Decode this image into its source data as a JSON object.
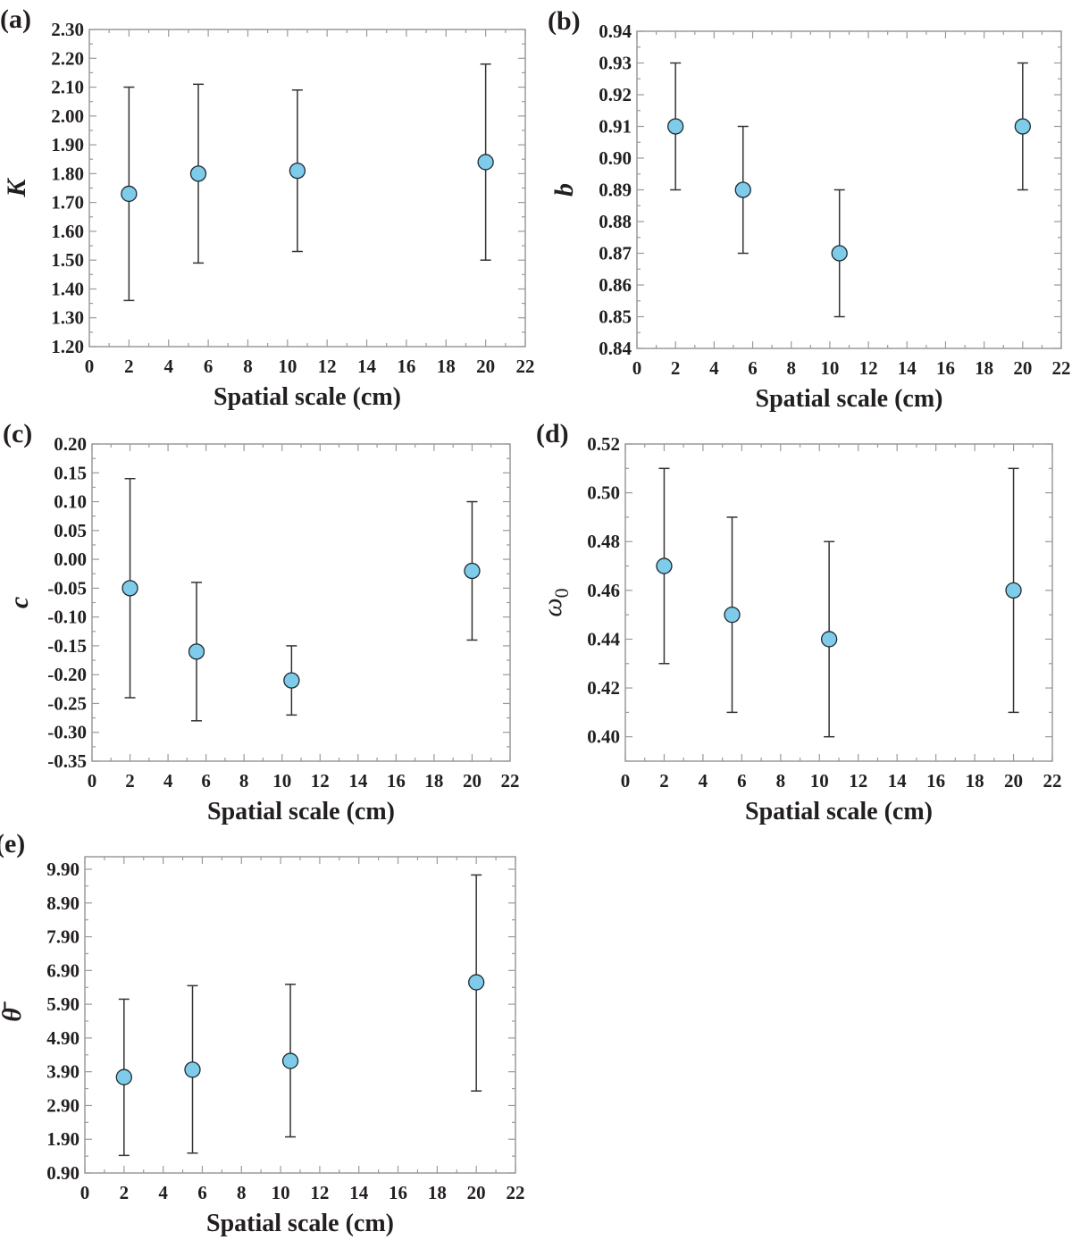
{
  "colors": {
    "marker_fill": "#7ecbea",
    "marker_edge": "#1f2a33",
    "errorbar": "#333333",
    "frame": "#9a9a9a"
  },
  "chart_data": [
    {
      "panel": "(a)",
      "type": "scatter",
      "xlabel": "Spatial scale (cm)",
      "ylabel": "K",
      "xlim": [
        0,
        22
      ],
      "ylim": [
        1.2,
        2.3
      ],
      "xticks": [
        "0",
        "2",
        "4",
        "6",
        "8",
        "10",
        "12",
        "14",
        "16",
        "18",
        "20",
        "22"
      ],
      "yticks": [
        "1.20",
        "1.30",
        "1.40",
        "1.50",
        "1.60",
        "1.70",
        "1.80",
        "1.90",
        "2.00",
        "2.10",
        "2.20",
        "2.30"
      ],
      "x": [
        2,
        5.5,
        10.5,
        20
      ],
      "y": [
        1.73,
        1.8,
        1.81,
        1.84
      ],
      "err_low": [
        1.36,
        1.49,
        1.53,
        1.5
      ],
      "err_high": [
        2.1,
        2.11,
        2.09,
        2.18
      ]
    },
    {
      "panel": "(b)",
      "type": "scatter",
      "xlabel": "Spatial scale (cm)",
      "ylabel": "b",
      "xlim": [
        0,
        22
      ],
      "ylim": [
        0.84,
        0.94
      ],
      "xticks": [
        "0",
        "2",
        "4",
        "6",
        "8",
        "10",
        "12",
        "14",
        "16",
        "18",
        "20",
        "22"
      ],
      "yticks": [
        "0.84",
        "0.85",
        "0.86",
        "0.87",
        "0.88",
        "0.89",
        "0.90",
        "0.91",
        "0.92",
        "0.93",
        "0.94"
      ],
      "x": [
        2,
        5.5,
        10.5,
        20
      ],
      "y": [
        0.91,
        0.89,
        0.87,
        0.91
      ],
      "err_low": [
        0.89,
        0.87,
        0.85,
        0.89
      ],
      "err_high": [
        0.93,
        0.91,
        0.89,
        0.93
      ]
    },
    {
      "panel": "(c)",
      "type": "scatter",
      "xlabel": "Spatial scale (cm)",
      "ylabel": "c",
      "xlim": [
        0,
        22
      ],
      "ylim": [
        -0.35,
        0.2
      ],
      "xticks": [
        "0",
        "2",
        "4",
        "6",
        "8",
        "10",
        "12",
        "14",
        "16",
        "18",
        "20",
        "22"
      ],
      "yticks": [
        "-0.35",
        "-0.30",
        "-0.25",
        "-0.20",
        "-0.15",
        "-0.10",
        "-0.05",
        "0.00",
        "0.05",
        "0.10",
        "0.15",
        "0.20"
      ],
      "x": [
        2,
        5.5,
        10.5,
        20
      ],
      "y": [
        -0.05,
        -0.16,
        -0.21,
        -0.02
      ],
      "err_low": [
        -0.24,
        -0.28,
        -0.27,
        -0.14
      ],
      "err_high": [
        0.14,
        -0.04,
        -0.15,
        0.1
      ]
    },
    {
      "panel": "(d)",
      "type": "scatter",
      "xlabel": "Spatial scale (cm)",
      "ylabel": "ω",
      "ylabel_sub": "0",
      "xlim": [
        0,
        22
      ],
      "ylim": [
        0.39,
        0.52
      ],
      "xticks": [
        "0",
        "2",
        "4",
        "6",
        "8",
        "10",
        "12",
        "14",
        "16",
        "18",
        "20",
        "22"
      ],
      "yticks": [
        "0.40",
        "0.42",
        "0.44",
        "0.46",
        "0.48",
        "0.50",
        "0.52"
      ],
      "x": [
        2,
        5.5,
        10.5,
        20
      ],
      "y": [
        0.47,
        0.45,
        0.44,
        0.46
      ],
      "err_low": [
        0.43,
        0.41,
        0.4,
        0.41
      ],
      "err_high": [
        0.51,
        0.49,
        0.48,
        0.51
      ]
    },
    {
      "panel": "(e)",
      "type": "scatter",
      "xlabel": "Spatial scale (cm)",
      "ylabel": "θ̄",
      "xlim": [
        0,
        22
      ],
      "ylim": [
        0.9,
        10.27
      ],
      "xticks": [
        "0",
        "2",
        "4",
        "6",
        "8",
        "10",
        "12",
        "14",
        "16",
        "18",
        "20",
        "22"
      ],
      "yticks": [
        "0.90",
        "1.90",
        "2.90",
        "3.90",
        "4.90",
        "5.90",
        "6.90",
        "7.90",
        "8.90",
        "9.90"
      ],
      "x": [
        2,
        5.5,
        10.5,
        20
      ],
      "y": [
        3.74,
        3.96,
        4.22,
        6.55
      ],
      "err_low": [
        1.42,
        1.49,
        1.97,
        3.33
      ],
      "err_high": [
        6.05,
        6.45,
        6.49,
        9.73
      ]
    }
  ]
}
